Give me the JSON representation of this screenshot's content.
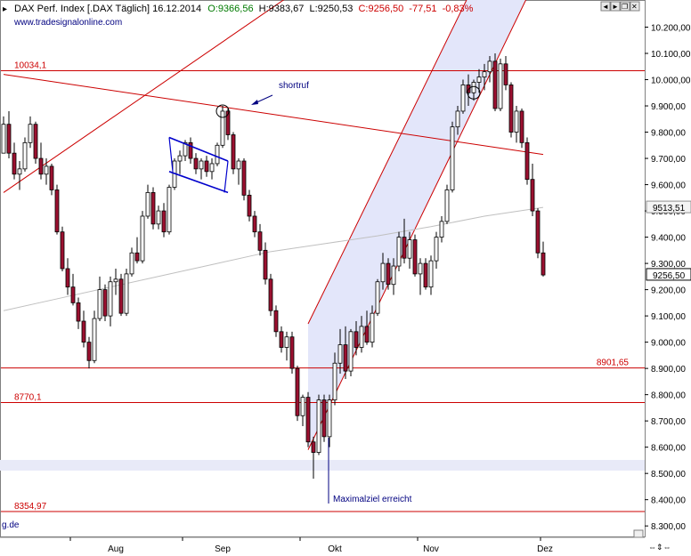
{
  "header": {
    "instrument": "DAX Perf. Index [.DAX  Täglich] 16.12.2014",
    "open": "O:9366,56",
    "high": "H:9383,67",
    "low": "L:9250,53",
    "close": "C:9256,50",
    "change": "-77,51",
    "change_pct": "-0,83%"
  },
  "window_buttons": [
    "◄",
    "►",
    "❐",
    "✕"
  ],
  "watermark": "www.tradesignalonline.com",
  "watermark_partial": "g.de",
  "colors": {
    "up": "#ffffff",
    "down": "#9b1030",
    "level_line": "#cc0000",
    "channel_fill": "#e3e6fa",
    "sma": "#c0c0c0",
    "annotation": "#000080",
    "header_green": "#007a00",
    "header_red": "#cc0000"
  },
  "chart_data": {
    "type": "candlestick",
    "title": "DAX Perf. Index [.DAX  Täglich] 16.12.2014",
    "xlabel": "",
    "ylabel": "",
    "x_ticks": [
      "Aug",
      "Sep",
      "Okt",
      "Nov",
      "Dez"
    ],
    "ylim": [
      8260,
      10300
    ],
    "y_ticks": [
      8300,
      8400,
      8500,
      8600,
      8700,
      8800,
      8900,
      9000,
      9100,
      9200,
      9300,
      9400,
      9500,
      9600,
      9700,
      9800,
      9900,
      10000,
      10100,
      10200
    ],
    "y_tick_labels": [
      "8.300,00",
      "8.400,00",
      "8.500,00",
      "8.600,00",
      "8.700,00",
      "8.800,00",
      "8.900,00",
      "9.000,00",
      "9.100,00",
      "9.200,00",
      "9.300,00",
      "9.400,00",
      "9.500,00",
      "9.600,00",
      "9.700,00",
      "9.800,00",
      "9.900,00",
      "10.000,00",
      "10.100,00",
      "10.200,00"
    ],
    "grid": false,
    "last_price": {
      "value": 9256.5,
      "label": "9256,50"
    },
    "sma_value": {
      "value": 9513.51,
      "label": "9513,51"
    },
    "levels": [
      {
        "value": 10034.1,
        "label": "10034,1",
        "label_side": "left"
      },
      {
        "value": 8901.65,
        "label": "8901,65",
        "label_side": "right"
      },
      {
        "value": 8770.1,
        "label": "8770,1",
        "label_side": "left"
      },
      {
        "value": 8354.97,
        "label": "8354,97",
        "label_side": "left"
      }
    ],
    "annotations": [
      {
        "text": "shortruf"
      },
      {
        "text": "Maximalziel erreicht"
      }
    ],
    "candles": [
      [
        9720,
        9860,
        9720,
        9830
      ],
      [
        9830,
        9880,
        9700,
        9720
      ],
      [
        9720,
        9760,
        9620,
        9640
      ],
      [
        9640,
        9690,
        9580,
        9660
      ],
      [
        9660,
        9780,
        9650,
        9760
      ],
      [
        9760,
        9860,
        9740,
        9830
      ],
      [
        9830,
        9840,
        9680,
        9700
      ],
      [
        9700,
        9760,
        9620,
        9640
      ],
      [
        9640,
        9700,
        9600,
        9670
      ],
      [
        9670,
        9680,
        9560,
        9580
      ],
      [
        9580,
        9600,
        9410,
        9420
      ],
      [
        9420,
        9440,
        9270,
        9280
      ],
      [
        9280,
        9320,
        9180,
        9210
      ],
      [
        9210,
        9260,
        9140,
        9150
      ],
      [
        9150,
        9170,
        9050,
        9080
      ],
      [
        9080,
        9120,
        8980,
        9000
      ],
      [
        9000,
        9020,
        8900,
        8930
      ],
      [
        8930,
        9120,
        8920,
        9090
      ],
      [
        9090,
        9250,
        9080,
        9200
      ],
      [
        9200,
        9220,
        9080,
        9100
      ],
      [
        9100,
        9250,
        9060,
        9230
      ],
      [
        9230,
        9280,
        9180,
        9240
      ],
      [
        9240,
        9260,
        9100,
        9110
      ],
      [
        9110,
        9280,
        9100,
        9260
      ],
      [
        9260,
        9360,
        9250,
        9340
      ],
      [
        9340,
        9400,
        9300,
        9310
      ],
      [
        9310,
        9500,
        9300,
        9480
      ],
      [
        9480,
        9600,
        9470,
        9570
      ],
      [
        9570,
        9590,
        9430,
        9450
      ],
      [
        9450,
        9520,
        9430,
        9500
      ],
      [
        9500,
        9530,
        9400,
        9420
      ],
      [
        9420,
        9600,
        9410,
        9590
      ],
      [
        9590,
        9700,
        9580,
        9690
      ],
      [
        9690,
        9730,
        9640,
        9710
      ],
      [
        9710,
        9770,
        9690,
        9760
      ],
      [
        9760,
        9780,
        9680,
        9700
      ],
      [
        9700,
        9720,
        9640,
        9660
      ],
      [
        9660,
        9700,
        9620,
        9690
      ],
      [
        9690,
        9710,
        9630,
        9650
      ],
      [
        9650,
        9700,
        9620,
        9680
      ],
      [
        9680,
        9760,
        9670,
        9750
      ],
      [
        9750,
        9900,
        9740,
        9880
      ],
      [
        9880,
        9890,
        9770,
        9790
      ],
      [
        9790,
        9800,
        9640,
        9660
      ],
      [
        9660,
        9700,
        9600,
        9690
      ],
      [
        9690,
        9700,
        9540,
        9560
      ],
      [
        9560,
        9580,
        9460,
        9480
      ],
      [
        9480,
        9500,
        9400,
        9420
      ],
      [
        9420,
        9450,
        9330,
        9350
      ],
      [
        9350,
        9380,
        9220,
        9240
      ],
      [
        9240,
        9260,
        9100,
        9120
      ],
      [
        9120,
        9140,
        9020,
        9040
      ],
      [
        9040,
        9060,
        8960,
        8980
      ],
      [
        8980,
        9040,
        8930,
        9020
      ],
      [
        9020,
        9040,
        8880,
        8900
      ],
      [
        8900,
        8910,
        8700,
        8720
      ],
      [
        8720,
        8800,
        8680,
        8790
      ],
      [
        8790,
        8810,
        8600,
        8620
      ],
      [
        8620,
        8640,
        8480,
        8580
      ],
      [
        8580,
        8800,
        8570,
        8780
      ],
      [
        8780,
        8800,
        8620,
        8640
      ],
      [
        8640,
        8800,
        8600,
        8780
      ],
      [
        8780,
        8960,
        8760,
        8920
      ],
      [
        8920,
        9050,
        8880,
        8990
      ],
      [
        8990,
        9060,
        8860,
        8890
      ],
      [
        8890,
        9050,
        8870,
        9040
      ],
      [
        9040,
        9080,
        8950,
        8980
      ],
      [
        8980,
        9100,
        8960,
        9060
      ],
      [
        9060,
        9120,
        8990,
        9000
      ],
      [
        9000,
        9140,
        8980,
        9110
      ],
      [
        9110,
        9240,
        9100,
        9230
      ],
      [
        9230,
        9340,
        9200,
        9300
      ],
      [
        9300,
        9320,
        9200,
        9220
      ],
      [
        9220,
        9320,
        9180,
        9290
      ],
      [
        9290,
        9420,
        9270,
        9400
      ],
      [
        9400,
        9470,
        9300,
        9320
      ],
      [
        9320,
        9420,
        9280,
        9390
      ],
      [
        9390,
        9410,
        9250,
        9260
      ],
      [
        9260,
        9320,
        9180,
        9300
      ],
      [
        9300,
        9320,
        9200,
        9210
      ],
      [
        9210,
        9330,
        9180,
        9310
      ],
      [
        9310,
        9420,
        9280,
        9400
      ],
      [
        9400,
        9480,
        9380,
        9460
      ],
      [
        9460,
        9600,
        9450,
        9580
      ],
      [
        9580,
        9840,
        9570,
        9820
      ],
      [
        9820,
        9900,
        9790,
        9880
      ],
      [
        9880,
        10000,
        9870,
        9980
      ],
      [
        9980,
        10020,
        9900,
        9950
      ],
      [
        9950,
        10000,
        9920,
        9990
      ],
      [
        9990,
        10040,
        9950,
        10010
      ],
      [
        10010,
        10060,
        9960,
        10030
      ],
      [
        10030,
        10090,
        9990,
        10070
      ],
      [
        10070,
        10100,
        9880,
        9890
      ],
      [
        9890,
        10080,
        9880,
        10060
      ],
      [
        10060,
        10090,
        9960,
        9980
      ],
      [
        9980,
        9990,
        9780,
        9800
      ],
      [
        9800,
        9900,
        9760,
        9880
      ],
      [
        9880,
        9890,
        9740,
        9760
      ],
      [
        9760,
        9780,
        9600,
        9620
      ],
      [
        9620,
        9680,
        9480,
        9500
      ],
      [
        9500,
        9510,
        9320,
        9340
      ],
      [
        9340,
        9383,
        9250,
        9256
      ]
    ],
    "sma": [
      [
        0,
        9120
      ],
      [
        10,
        9165
      ],
      [
        20,
        9210
      ],
      [
        30,
        9255
      ],
      [
        40,
        9300
      ],
      [
        50,
        9345
      ],
      [
        60,
        9375
      ],
      [
        70,
        9405
      ],
      [
        80,
        9440
      ],
      [
        90,
        9480
      ],
      [
        101,
        9513.51
      ]
    ],
    "trendlines": [
      {
        "points": [
          [
            0,
            9570
          ],
          [
            95,
            10900
          ]
        ]
      },
      {
        "points": [
          [
            0,
            10020
          ],
          [
            101,
            9715
          ]
        ]
      }
    ],
    "channel": {
      "lower": [
        [
          57,
          8590
        ],
        [
          101,
          10440
        ]
      ],
      "upper": [
        [
          57,
          9070
        ],
        [
          101,
          10900
        ]
      ]
    },
    "markers": [
      {
        "at": [
          41,
          9880
        ]
      },
      {
        "at": [
          88,
          9950
        ]
      }
    ],
    "flag": {
      "upper": [
        [
          32,
          9780
        ],
        [
          41,
          9690
        ]
      ],
      "lower": [
        [
          32,
          9650
        ],
        [
          41,
          9570
        ]
      ]
    }
  }
}
